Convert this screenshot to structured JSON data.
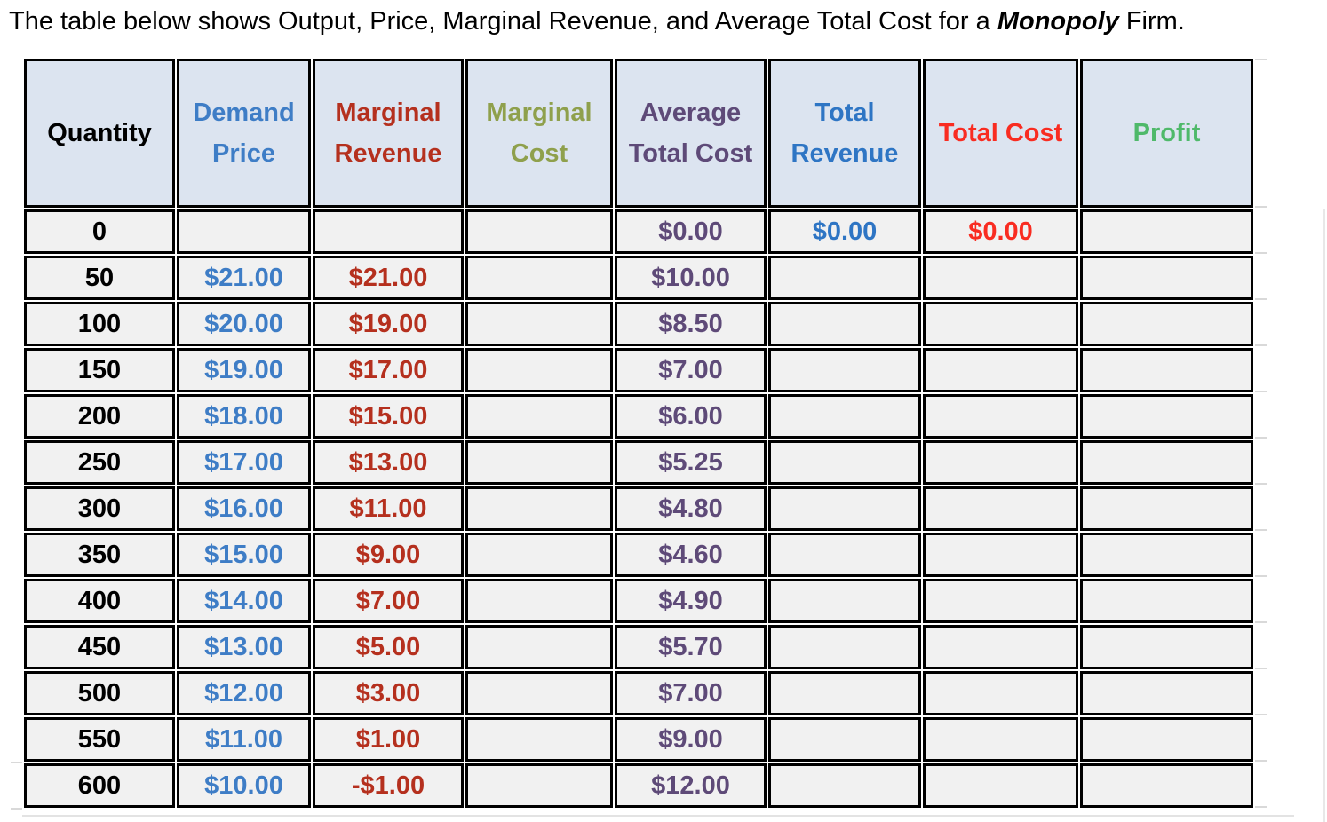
{
  "title": {
    "prefix": "The table below shows Output, Price, Marginal Revenue, and Average Total Cost for a ",
    "emphasis": "Monopoly",
    "suffix": " Firm."
  },
  "colors": {
    "header_background": "#dce4f0",
    "row_background": "#f1f1f1",
    "border": "#000000",
    "gridline_stub": "#d9d9d9"
  },
  "table": {
    "columns": [
      {
        "id": "quantity",
        "label": "Quantity",
        "color": "#000000"
      },
      {
        "id": "demand-price",
        "label": "Demand\nPrice",
        "color": "#3e7dc6"
      },
      {
        "id": "marginal-revenue",
        "label": "Marginal\nRevenue",
        "color": "#b5301e"
      },
      {
        "id": "marginal-cost",
        "label": "Marginal\nCost",
        "color": "#8fa04c"
      },
      {
        "id": "average-total-cost",
        "label": "Average\nTotal Cost",
        "color": "#5e4a78"
      },
      {
        "id": "total-revenue",
        "label": "Total\nRevenue",
        "color": "#2e75c4"
      },
      {
        "id": "total-cost",
        "label": "Total Cost",
        "color": "#f92c21"
      },
      {
        "id": "profit",
        "label": "Profit",
        "color": "#4fb96a"
      }
    ],
    "rows": [
      [
        "0",
        "",
        "",
        "",
        "$0.00",
        "$0.00",
        "$0.00",
        ""
      ],
      [
        "50",
        "$21.00",
        "$21.00",
        "",
        "$10.00",
        "",
        "",
        ""
      ],
      [
        "100",
        "$20.00",
        "$19.00",
        "",
        "$8.50",
        "",
        "",
        ""
      ],
      [
        "150",
        "$19.00",
        "$17.00",
        "",
        "$7.00",
        "",
        "",
        ""
      ],
      [
        "200",
        "$18.00",
        "$15.00",
        "",
        "$6.00",
        "",
        "",
        ""
      ],
      [
        "250",
        "$17.00",
        "$13.00",
        "",
        "$5.25",
        "",
        "",
        ""
      ],
      [
        "300",
        "$16.00",
        "$11.00",
        "",
        "$4.80",
        "",
        "",
        ""
      ],
      [
        "350",
        "$15.00",
        "$9.00",
        "",
        "$4.60",
        "",
        "",
        ""
      ],
      [
        "400",
        "$14.00",
        "$7.00",
        "",
        "$4.90",
        "",
        "",
        ""
      ],
      [
        "450",
        "$13.00",
        "$5.00",
        "",
        "$5.70",
        "",
        "",
        ""
      ],
      [
        "500",
        "$12.00",
        "$3.00",
        "",
        "$7.00",
        "",
        "",
        ""
      ],
      [
        "550",
        "$11.00",
        "$1.00",
        "",
        "$9.00",
        "",
        "",
        ""
      ],
      [
        "600",
        "$10.00",
        "-$1.00",
        "",
        "$12.00",
        "",
        "",
        ""
      ]
    ]
  }
}
